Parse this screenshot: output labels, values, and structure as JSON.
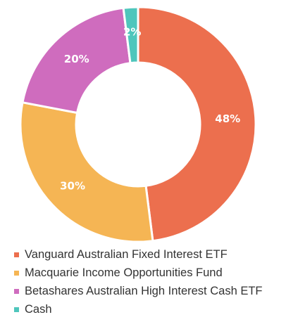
{
  "chart_data": {
    "type": "pie",
    "donut": true,
    "legend_position": "bottom-left",
    "series": [
      {
        "name": "Vanguard Australian Fixed Interest ETF",
        "value": 48,
        "label": "48%",
        "color": "#ec6f4e"
      },
      {
        "name": "Macquarie Income Opportunities Fund",
        "value": 30,
        "label": "30%",
        "color": "#f5b554"
      },
      {
        "name": "Betashares Australian High Interest Cash ETF",
        "value": 20,
        "label": "20%",
        "color": "#cf6cbe"
      },
      {
        "name": "Cash",
        "value": 2,
        "label": "2%",
        "color": "#4fc6bc"
      }
    ]
  }
}
